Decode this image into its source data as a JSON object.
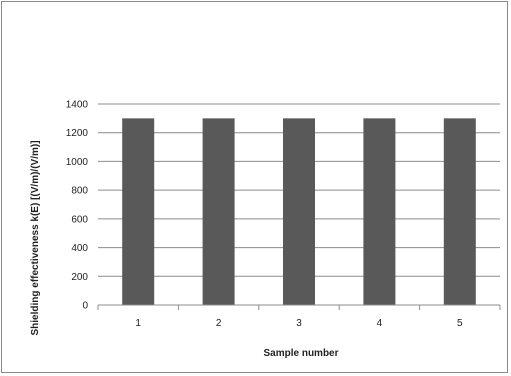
{
  "chart_data": {
    "type": "bar",
    "categories": [
      "1",
      "2",
      "3",
      "4",
      "5"
    ],
    "values": [
      1300,
      1300,
      1300,
      1300,
      1300
    ],
    "xlabel": "Sample number",
    "ylabel": "Shielding effectiveness k(E) [(V/m)/(V/m)]",
    "ylim": [
      0,
      1400
    ],
    "yticks": [
      "0",
      "200",
      "400",
      "600",
      "800",
      "1000",
      "1200",
      "1400"
    ],
    "grid": true,
    "legend": "none",
    "bar_color": "#595959",
    "grid_color": "#8c8c8c"
  }
}
